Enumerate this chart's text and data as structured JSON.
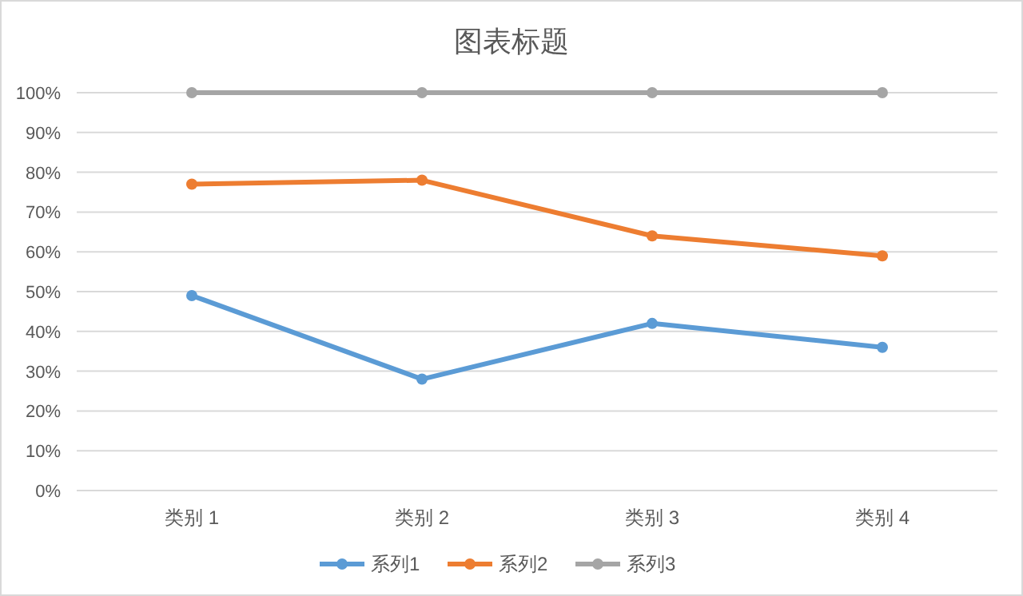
{
  "chart_data": {
    "type": "line",
    "title": "图表标题",
    "categories": [
      "类别 1",
      "类别 2",
      "类别 3",
      "类别 4"
    ],
    "series": [
      {
        "name": "系列1",
        "color": "#5b9bd5",
        "values": [
          49,
          28,
          42,
          36
        ]
      },
      {
        "name": "系列2",
        "color": "#ed7d31",
        "values": [
          77,
          78,
          64,
          59
        ]
      },
      {
        "name": "系列3",
        "color": "#a5a5a5",
        "values": [
          100,
          100,
          100,
          100
        ]
      }
    ],
    "ylim": [
      0,
      100
    ],
    "yticks": [
      {
        "value": 0,
        "label": "0%"
      },
      {
        "value": 10,
        "label": "10%"
      },
      {
        "value": 20,
        "label": "20%"
      },
      {
        "value": 30,
        "label": "30%"
      },
      {
        "value": 40,
        "label": "40%"
      },
      {
        "value": 50,
        "label": "50%"
      },
      {
        "value": 60,
        "label": "60%"
      },
      {
        "value": 70,
        "label": "70%"
      },
      {
        "value": 80,
        "label": "80%"
      },
      {
        "value": 90,
        "label": "90%"
      },
      {
        "value": 100,
        "label": "100%"
      }
    ],
    "grid": "y",
    "legend": "bottom",
    "marker": "circle",
    "line_style": "solid"
  }
}
